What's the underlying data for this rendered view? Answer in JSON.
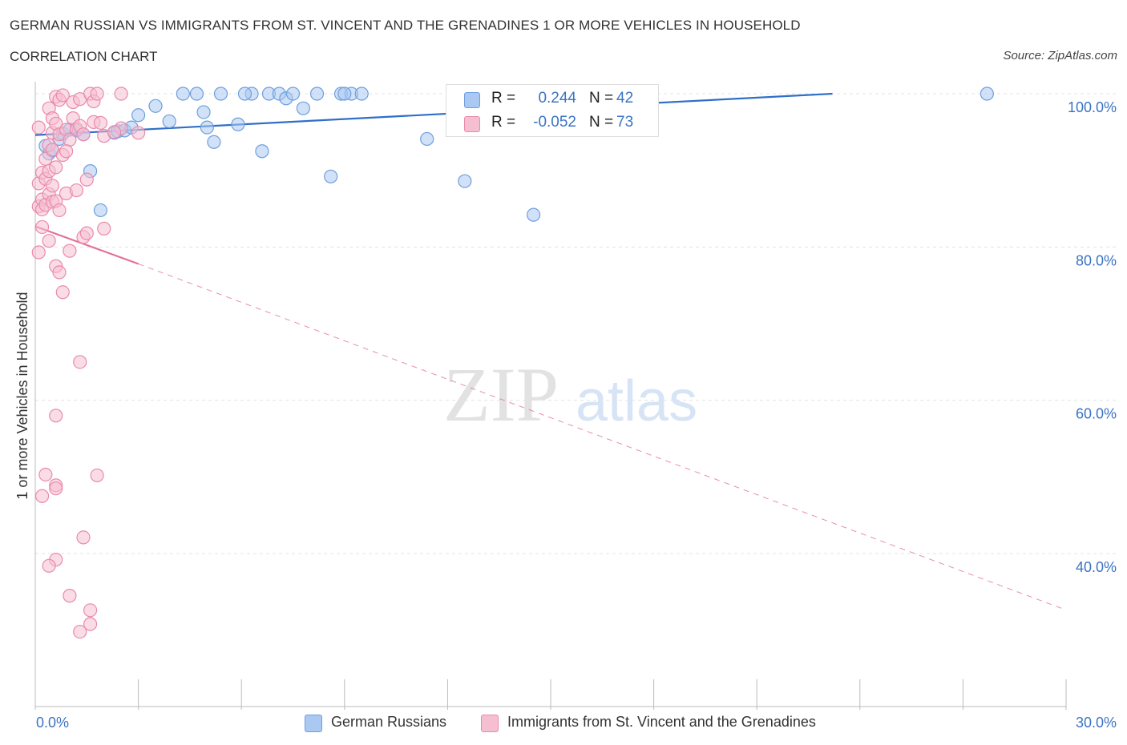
{
  "title": "GERMAN RUSSIAN VS IMMIGRANTS FROM ST. VINCENT AND THE GRENADINES 1 OR MORE VEHICLES IN HOUSEHOLD",
  "subtitle": "CORRELATION CHART",
  "source": "Source: ZipAtlas.com",
  "watermark": {
    "zip": "ZIP",
    "atlas": "atlas"
  },
  "legend_stats": [
    {
      "r_label": "R =",
      "r_value": "0.244",
      "n_label": "N =",
      "n_value": "42"
    },
    {
      "r_label": "R =",
      "r_value": "-0.052",
      "n_label": "N =",
      "n_value": "73"
    }
  ],
  "chart_data": {
    "type": "scatter",
    "title": "GERMAN RUSSIAN VS IMMIGRANTS FROM ST. VINCENT AND THE GRENADINES 1 OR MORE VEHICLES IN HOUSEHOLD",
    "xlabel": "",
    "ylabel": "1 or more Vehicles in Household",
    "xlim": [
      0,
      30
    ],
    "ylim": [
      20,
      100
    ],
    "x_tick_labels": [
      "0.0%",
      "30.0%"
    ],
    "y_ticks": [
      100,
      80,
      60,
      40
    ],
    "y_tick_labels": [
      "100.0%",
      "80.0%",
      "60.0%",
      "40.0%"
    ],
    "grid": true,
    "legend_position": "bottom",
    "colors": {
      "blue_fill": "#a9c8f2",
      "blue_stroke": "#6f9fdd",
      "blue_line": "#2f6fc8",
      "pink_fill": "#f6bfd1",
      "pink_stroke": "#e98aab",
      "pink_line": "#e2709a",
      "tick_label": "#3a74c5",
      "grid": "#e3e3e3"
    },
    "series": [
      {
        "name": "German Russians",
        "color": "#a9c8f2",
        "points": [
          [
            0.4,
            92.2
          ],
          [
            0.5,
            92.6
          ],
          [
            0.7,
            94.1
          ],
          [
            0.8,
            94.8
          ],
          [
            1.0,
            95.3
          ],
          [
            1.2,
            95.2
          ],
          [
            1.6,
            89.9
          ],
          [
            1.9,
            84.8
          ],
          [
            2.3,
            94.9
          ],
          [
            2.4,
            95.1
          ],
          [
            2.6,
            95.2
          ],
          [
            2.8,
            95.6
          ],
          [
            3.0,
            97.2
          ],
          [
            3.5,
            98.4
          ],
          [
            3.9,
            96.4
          ],
          [
            4.3,
            100
          ],
          [
            4.7,
            100
          ],
          [
            4.9,
            97.6
          ],
          [
            5.0,
            95.6
          ],
          [
            5.2,
            93.7
          ],
          [
            5.4,
            100
          ],
          [
            5.9,
            96.0
          ],
          [
            6.3,
            100
          ],
          [
            6.6,
            92.5
          ],
          [
            6.8,
            100
          ],
          [
            7.1,
            100
          ],
          [
            7.3,
            99.4
          ],
          [
            7.5,
            100
          ],
          [
            7.8,
            98.1
          ],
          [
            8.2,
            100
          ],
          [
            8.6,
            89.2
          ],
          [
            8.9,
            100
          ],
          [
            9.2,
            100
          ],
          [
            9.5,
            100
          ],
          [
            11.4,
            94.1
          ],
          [
            12.5,
            88.6
          ],
          [
            14.5,
            84.2
          ],
          [
            27.7,
            100
          ],
          [
            0.3,
            93.2
          ],
          [
            1.4,
            94.7
          ],
          [
            6.1,
            100
          ],
          [
            9.0,
            100
          ]
        ]
      },
      {
        "name": "Immigrants from St. Vincent and the Grenadines",
        "color": "#f6bfd1",
        "points": [
          [
            0.1,
            95.6
          ],
          [
            0.1,
            88.3
          ],
          [
            0.1,
            85.3
          ],
          [
            0.1,
            79.3
          ],
          [
            0.2,
            89.7
          ],
          [
            0.2,
            86.2
          ],
          [
            0.2,
            84.9
          ],
          [
            0.2,
            82.6
          ],
          [
            0.3,
            91.5
          ],
          [
            0.3,
            88.9
          ],
          [
            0.3,
            85.5
          ],
          [
            0.4,
            98.1
          ],
          [
            0.4,
            93.3
          ],
          [
            0.4,
            89.9
          ],
          [
            0.4,
            86.9
          ],
          [
            0.4,
            80.8
          ],
          [
            0.5,
            96.8
          ],
          [
            0.5,
            94.9
          ],
          [
            0.5,
            92.7
          ],
          [
            0.5,
            88.0
          ],
          [
            0.5,
            85.9
          ],
          [
            0.6,
            99.6
          ],
          [
            0.6,
            96.1
          ],
          [
            0.6,
            90.4
          ],
          [
            0.6,
            86.0
          ],
          [
            0.6,
            77.5
          ],
          [
            0.7,
            99.2
          ],
          [
            0.7,
            94.7
          ],
          [
            0.7,
            84.8
          ],
          [
            0.7,
            76.7
          ],
          [
            0.8,
            99.8
          ],
          [
            0.8,
            92.0
          ],
          [
            0.8,
            74.1
          ],
          [
            0.9,
            95.3
          ],
          [
            0.9,
            87.0
          ],
          [
            1.0,
            94.0
          ],
          [
            1.0,
            79.5
          ],
          [
            1.1,
            98.9
          ],
          [
            1.1,
            96.8
          ],
          [
            1.2,
            95.4
          ],
          [
            1.2,
            87.4
          ],
          [
            1.3,
            99.3
          ],
          [
            1.3,
            95.8
          ],
          [
            1.4,
            94.7
          ],
          [
            1.4,
            81.3
          ],
          [
            1.5,
            88.8
          ],
          [
            1.5,
            81.8
          ],
          [
            1.6,
            100
          ],
          [
            1.7,
            99.0
          ],
          [
            1.7,
            96.3
          ],
          [
            1.8,
            100
          ],
          [
            1.9,
            96.2
          ],
          [
            2.0,
            94.5
          ],
          [
            2.0,
            82.4
          ],
          [
            2.5,
            100
          ],
          [
            2.5,
            95.5
          ],
          [
            3.0,
            94.9
          ],
          [
            1.3,
            65.0
          ],
          [
            0.6,
            58.0
          ],
          [
            0.3,
            50.3
          ],
          [
            0.6,
            48.9
          ],
          [
            1.8,
            50.2
          ],
          [
            0.2,
            47.5
          ],
          [
            1.4,
            42.1
          ],
          [
            0.6,
            39.2
          ],
          [
            0.4,
            38.4
          ],
          [
            1.0,
            34.5
          ],
          [
            1.6,
            32.6
          ],
          [
            1.6,
            30.8
          ],
          [
            1.3,
            29.8
          ],
          [
            0.6,
            48.5
          ],
          [
            0.9,
            92.5
          ],
          [
            2.3,
            95.0
          ]
        ]
      }
    ],
    "trend_lines": [
      {
        "series": "German Russians",
        "style": "solid",
        "from": [
          0,
          94.6
        ],
        "to": [
          23.2,
          100
        ]
      },
      {
        "series": "Immigrants from St. Vincent and the Grenadines",
        "style": "solid",
        "from": [
          0,
          82.7
        ],
        "to": [
          3.0,
          77.8
        ]
      },
      {
        "series": "Immigrants from St. Vincent and the Grenadines",
        "style": "dashed",
        "from": [
          3.0,
          77.8
        ],
        "to": [
          29.9,
          32.8
        ]
      }
    ]
  },
  "legend_bottom": [
    {
      "label": "German Russians"
    },
    {
      "label": "Immigrants from St. Vincent and the Grenadines"
    }
  ]
}
